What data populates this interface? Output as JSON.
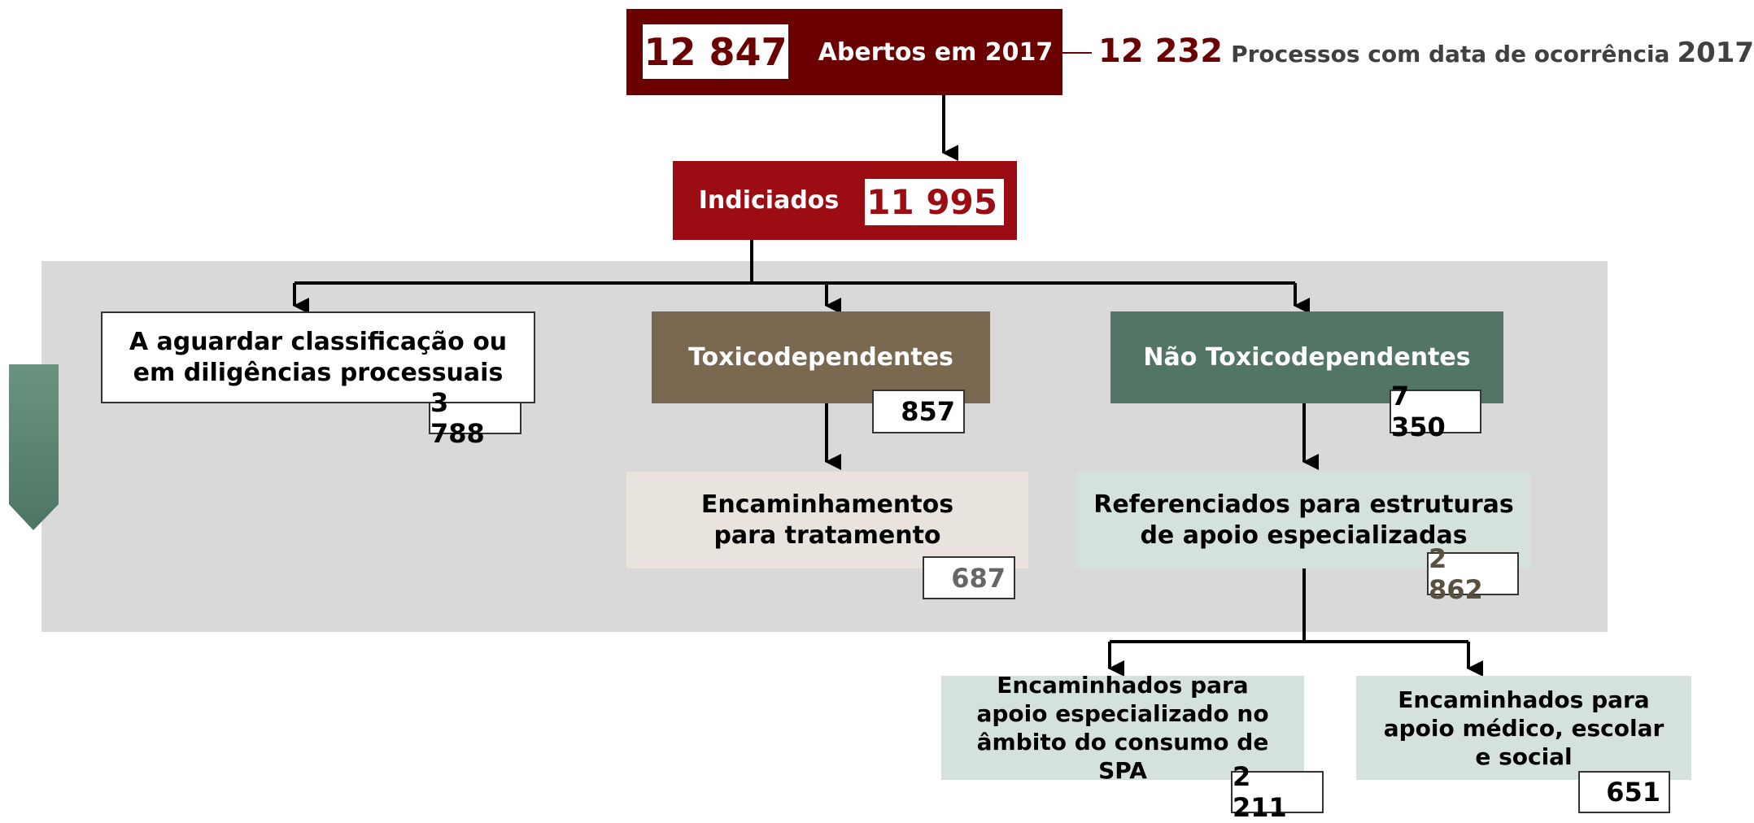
{
  "header": {
    "total": "12 847",
    "label": "Abertos em 2017",
    "occurrence_value": "12 232",
    "occurrence_label": "Processos com data de ocorrência",
    "occurrence_year": "2017"
  },
  "nodes": [
    {
      "label": "Indiciados",
      "value": "11 995"
    },
    {
      "label": "A aguardar classificação ou em diligências processuais",
      "value": "3 788"
    },
    {
      "label": "Toxicodependentes",
      "value": "857"
    },
    {
      "label": "Não Toxicodependentes",
      "value": "7 350"
    },
    {
      "label": "Encaminhamentos para tratamento",
      "value": "687"
    },
    {
      "label": "Referenciados para estruturas de apoio especializadas",
      "value": "2 862"
    },
    {
      "label": "Encaminhados para apoio especializado no âmbito do consumo de SPA",
      "value": "2 211"
    },
    {
      "label": "Encaminhados para apoio médico, escolar e social",
      "value": "651"
    }
  ]
}
